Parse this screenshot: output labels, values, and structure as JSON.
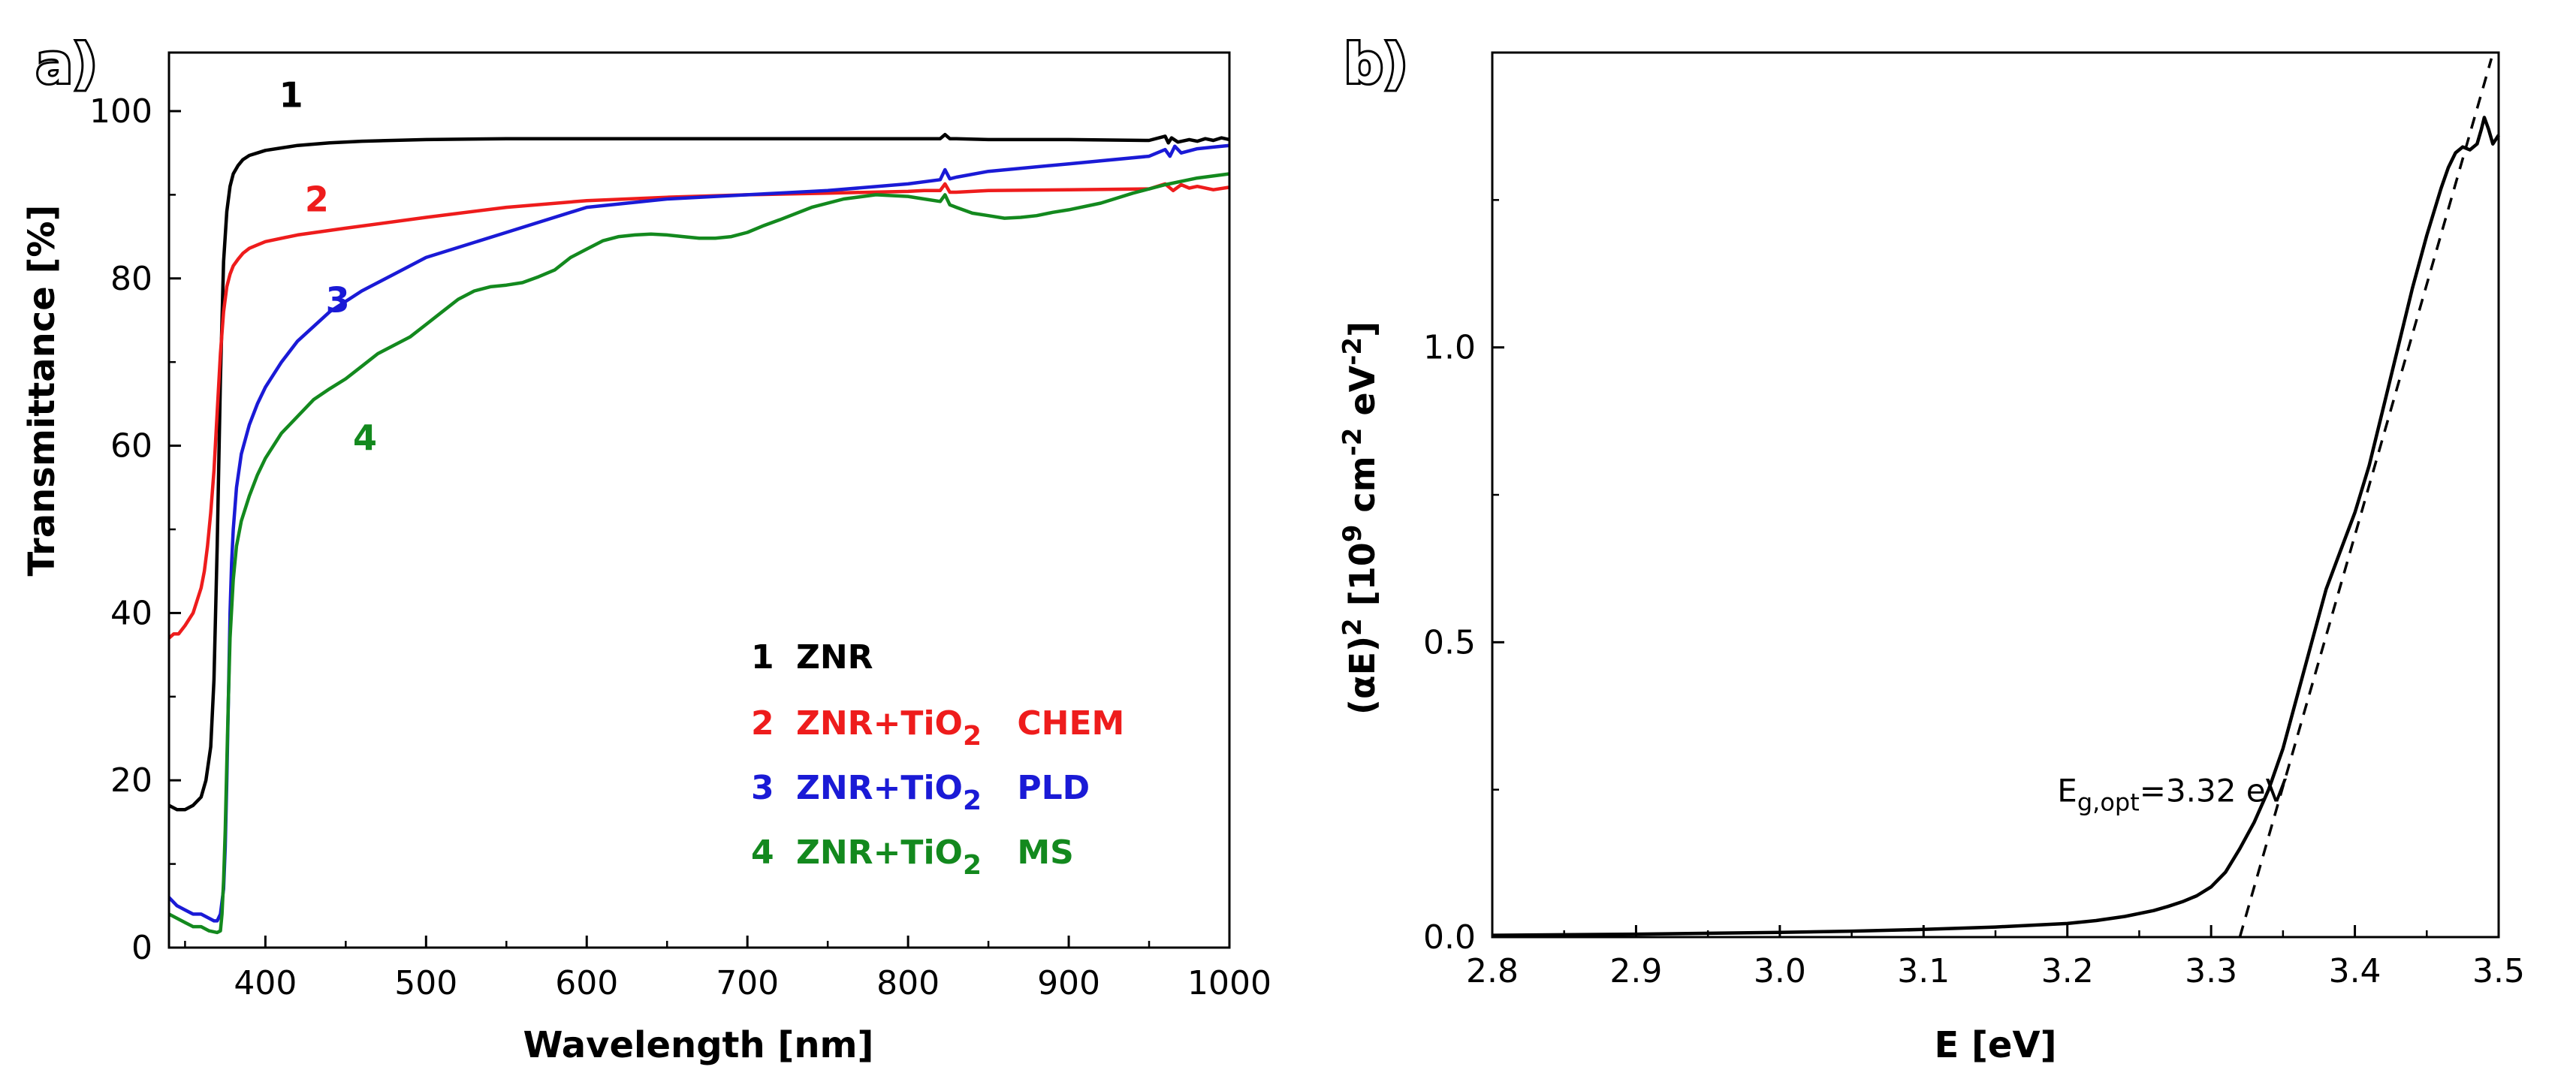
{
  "chart_data": [
    {
      "type": "line",
      "panel_label": "a)",
      "xlabel": "Wavelength [nm]",
      "ylabel": "Transmittance [%]",
      "xlim": [
        340,
        1000
      ],
      "ylim": [
        0,
        107
      ],
      "xticks": [
        400,
        500,
        600,
        700,
        800,
        900,
        1000
      ],
      "yticks": [
        0,
        20,
        40,
        60,
        80,
        100
      ],
      "grid": false,
      "legend_position": "bottom-right",
      "legend": [
        {
          "num": "1",
          "label": "ZNR",
          "suffix": "",
          "color": "#000000"
        },
        {
          "num": "2",
          "label": "ZNR+TiO",
          "sub": "2",
          "suffix": "CHEM",
          "color": "#ee1c1c"
        },
        {
          "num": "3",
          "label": "ZNR+TiO",
          "sub": "2",
          "suffix": "PLD",
          "color": "#1a1ad6"
        },
        {
          "num": "4",
          "label": "ZNR+TiO",
          "sub": "2",
          "suffix": "MS",
          "color": "#13891e"
        }
      ],
      "series": [
        {
          "name": "1",
          "label_text": "1",
          "label_at": [
            416,
            100.5
          ],
          "color": "#000000",
          "x": [
            340,
            345,
            350,
            355,
            360,
            363,
            366,
            368,
            370,
            372,
            374,
            376,
            378,
            380,
            383,
            386,
            390,
            395,
            400,
            410,
            420,
            440,
            460,
            500,
            550,
            600,
            650,
            700,
            750,
            800,
            820,
            823,
            826,
            830,
            850,
            900,
            950,
            960,
            962,
            964,
            968,
            975,
            980,
            985,
            990,
            995,
            1000
          ],
          "y": [
            17,
            16.5,
            16.5,
            17,
            18,
            20,
            24,
            32,
            48,
            68,
            82,
            88,
            91,
            92.5,
            93.5,
            94.2,
            94.7,
            95,
            95.3,
            95.6,
            95.9,
            96.2,
            96.4,
            96.6,
            96.7,
            96.7,
            96.7,
            96.7,
            96.7,
            96.7,
            96.7,
            97.2,
            96.7,
            96.7,
            96.6,
            96.6,
            96.5,
            97,
            96.2,
            96.8,
            96.3,
            96.6,
            96.4,
            96.7,
            96.5,
            96.8,
            96.6
          ]
        },
        {
          "name": "2",
          "label_text": "2",
          "label_at": [
            432,
            88
          ],
          "color": "#ee1c1c",
          "x": [
            340,
            343,
            346,
            350,
            355,
            360,
            362,
            364,
            366,
            368,
            370,
            372,
            374,
            376,
            378,
            380,
            383,
            386,
            390,
            395,
            400,
            420,
            450,
            500,
            550,
            600,
            650,
            700,
            750,
            800,
            810,
            820,
            823,
            826,
            830,
            850,
            900,
            950,
            960,
            965,
            970,
            975,
            980,
            990,
            1000
          ],
          "y": [
            37,
            37.5,
            37.5,
            38.5,
            40,
            43,
            45,
            48,
            52,
            57,
            64,
            71,
            76,
            79,
            80.5,
            81.5,
            82.3,
            83,
            83.6,
            84,
            84.4,
            85.2,
            86,
            87.3,
            88.5,
            89.3,
            89.7,
            90,
            90.2,
            90.4,
            90.5,
            90.5,
            91.3,
            90.3,
            90.3,
            90.5,
            90.6,
            90.7,
            91.3,
            90.5,
            91.2,
            90.8,
            91,
            90.6,
            90.9
          ]
        },
        {
          "name": "3",
          "label_text": "3",
          "label_at": [
            445,
            76
          ],
          "color": "#1a1ad6",
          "x": [
            340,
            345,
            350,
            355,
            360,
            365,
            368,
            370,
            372,
            374,
            375,
            376,
            377,
            378,
            379,
            380,
            382,
            385,
            390,
            395,
            400,
            410,
            420,
            440,
            460,
            480,
            500,
            550,
            600,
            650,
            700,
            750,
            800,
            820,
            823,
            826,
            830,
            850,
            900,
            950,
            960,
            963,
            966,
            970,
            980,
            990,
            1000
          ],
          "y": [
            6,
            5,
            4.5,
            4,
            4,
            3.5,
            3.2,
            3.2,
            4,
            7,
            12,
            20,
            30,
            40,
            46,
            50,
            55,
            59,
            62.5,
            65,
            67,
            70,
            72.5,
            76,
            78.5,
            80.5,
            82.5,
            85.5,
            88.5,
            89.5,
            90,
            90.5,
            91.3,
            91.8,
            93,
            91.9,
            92.1,
            92.8,
            93.7,
            94.6,
            95.4,
            94.6,
            95.8,
            95,
            95.5,
            95.7,
            95.9
          ]
        },
        {
          "name": "4",
          "label_text": "4",
          "label_at": [
            462,
            59.5
          ],
          "color": "#13891e",
          "x": [
            340,
            345,
            350,
            355,
            360,
            365,
            370,
            372,
            373,
            374,
            375,
            376,
            377,
            378,
            380,
            382,
            385,
            390,
            395,
            400,
            410,
            420,
            430,
            440,
            450,
            460,
            470,
            480,
            490,
            500,
            510,
            520,
            530,
            540,
            550,
            560,
            570,
            580,
            590,
            600,
            610,
            620,
            630,
            640,
            650,
            660,
            670,
            680,
            690,
            700,
            710,
            720,
            740,
            760,
            780,
            800,
            810,
            820,
            823,
            826,
            830,
            840,
            850,
            860,
            870,
            880,
            890,
            900,
            920,
            940,
            960,
            980,
            1000
          ],
          "y": [
            4,
            3.5,
            3,
            2.5,
            2.5,
            2,
            1.8,
            2,
            4,
            8,
            14,
            22,
            30,
            37,
            44,
            48,
            51,
            54,
            56.5,
            58.5,
            61.5,
            63.5,
            65.5,
            66.8,
            68,
            69.5,
            71,
            72,
            73,
            74.5,
            76,
            77.5,
            78.5,
            79,
            79.2,
            79.5,
            80.2,
            81,
            82.5,
            83.5,
            84.5,
            85,
            85.2,
            85.3,
            85.2,
            85,
            84.8,
            84.8,
            85,
            85.5,
            86.3,
            87,
            88.5,
            89.5,
            90,
            89.8,
            89.5,
            89.2,
            90,
            88.8,
            88.5,
            87.8,
            87.5,
            87.2,
            87.3,
            87.5,
            87.9,
            88.2,
            89,
            90.2,
            91.2,
            92,
            92.5
          ]
        }
      ]
    },
    {
      "type": "line",
      "panel_label": "b)",
      "xlabel": "E [eV]",
      "ylabel_prefix": "(αE)",
      "ylabel_sup": "2",
      "ylabel_mid": " [10",
      "ylabel_sup2": "9",
      "ylabel_mid2": " cm",
      "ylabel_sup3": "-2",
      "ylabel_mid3": " eV",
      "ylabel_sup4": "-2",
      "ylabel_end": "]",
      "xlim": [
        2.8,
        3.5
      ],
      "ylim": [
        0,
        1.5
      ],
      "xticks": [
        "2.8",
        "2.9",
        "3.0",
        "3.1",
        "3.2",
        "3.3",
        "3.4",
        "3.5"
      ],
      "yticks": [
        "0.0",
        "0.5",
        "1.0"
      ],
      "grid": false,
      "annotation": {
        "main": "E",
        "sub": "g,opt",
        "rest": "=3.32 eV",
        "anchor": [
          3.24,
          0.23
        ]
      },
      "series": [
        {
          "name": "(αE)^2",
          "color": "#000000",
          "x": [
            2.8,
            2.9,
            3.0,
            3.05,
            3.1,
            3.15,
            3.2,
            3.22,
            3.24,
            3.26,
            3.27,
            3.28,
            3.29,
            3.3,
            3.31,
            3.32,
            3.33,
            3.34,
            3.35,
            3.36,
            3.37,
            3.38,
            3.39,
            3.4,
            3.41,
            3.42,
            3.43,
            3.44,
            3.45,
            3.46,
            3.465,
            3.47,
            3.475,
            3.48,
            3.485,
            3.488,
            3.49,
            3.493,
            3.496,
            3.5
          ],
          "y": [
            0.003,
            0.005,
            0.008,
            0.01,
            0.013,
            0.017,
            0.023,
            0.028,
            0.035,
            0.045,
            0.052,
            0.06,
            0.07,
            0.085,
            0.11,
            0.15,
            0.195,
            0.25,
            0.32,
            0.41,
            0.5,
            0.59,
            0.655,
            0.72,
            0.8,
            0.9,
            1.0,
            1.1,
            1.19,
            1.27,
            1.305,
            1.33,
            1.34,
            1.335,
            1.345,
            1.37,
            1.39,
            1.37,
            1.345,
            1.36
          ]
        },
        {
          "name": "linear fit",
          "color": "#000000",
          "style": "dashed",
          "x": [
            3.32,
            3.495
          ],
          "y": [
            0.0,
            1.49
          ]
        }
      ]
    }
  ]
}
